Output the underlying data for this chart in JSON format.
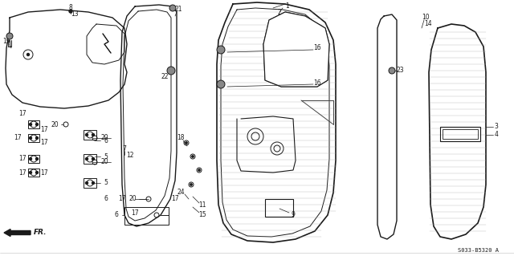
{
  "part_number": "S033-B5320 A",
  "bg_color": "#ffffff",
  "line_color": "#1a1a1a"
}
